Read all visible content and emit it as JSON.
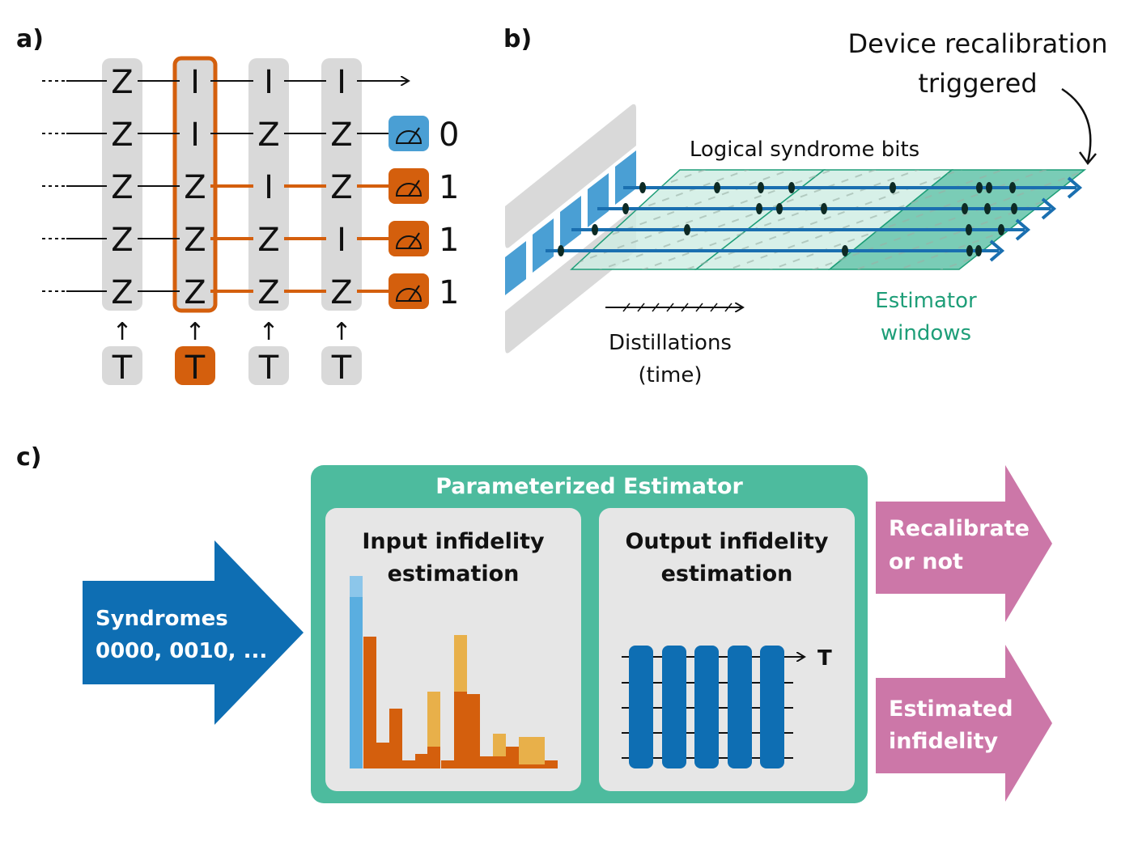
{
  "panel_labels": {
    "a": "a)",
    "b": "b)",
    "c": "c)"
  },
  "panel_a": {
    "columns": [
      {
        "ops": [
          "Z",
          "Z",
          "Z",
          "Z",
          "Z"
        ],
        "t_label": "T",
        "highlighted": false
      },
      {
        "ops": [
          "I",
          "I",
          "Z",
          "Z",
          "Z"
        ],
        "t_label": "T",
        "highlighted": true
      },
      {
        "ops": [
          "I",
          "Z",
          "I",
          "Z",
          "Z"
        ],
        "t_label": "T",
        "highlighted": false
      },
      {
        "ops": [
          "I",
          "Z",
          "Z",
          "I",
          "Z"
        ],
        "t_label": "T",
        "highlighted": false
      }
    ],
    "arrow_up": "↑",
    "measurements": [
      {
        "value": "0",
        "color": "#4a9fd4"
      },
      {
        "value": "1",
        "color": "#d45f0d"
      },
      {
        "value": "1",
        "color": "#d45f0d"
      },
      {
        "value": "1",
        "color": "#d45f0d"
      }
    ],
    "continuation": "····"
  },
  "panel_b": {
    "recalibration_label_line1": "Device recalibration",
    "recalibration_label_line2": "triggered",
    "syndrome_label": "Logical syndrome bits",
    "time_label_line1": "Distillations",
    "time_label_line2": "(time)",
    "window_label_line1": "Estimator",
    "window_label_line2": "windows"
  },
  "panel_c": {
    "input_arrow_line1": "Syndromes",
    "input_arrow_line2": "0000, 0010, ...",
    "estimator_title": "Parameterized Estimator",
    "input_box_line1": "Input infidelity",
    "input_box_line2": "estimation",
    "output_box_line1": "Output infidelity",
    "output_box_line2": "estimation",
    "output_time_label": "T",
    "out_arrow1_line1": "Recalibrate",
    "out_arrow1_line2": "or not",
    "out_arrow2_line1": "Estimated",
    "out_arrow2_line2": "infidelity"
  },
  "colors": {
    "orange": "#d45f0d",
    "blue": "#1a6fb0",
    "light_blue": "#4a9fd4",
    "green": "#4dbb9e",
    "green_text": "#1e9e78",
    "pink": "#cc77a8",
    "gray": "#d9d9d9",
    "yellow": "#e8b04a"
  }
}
